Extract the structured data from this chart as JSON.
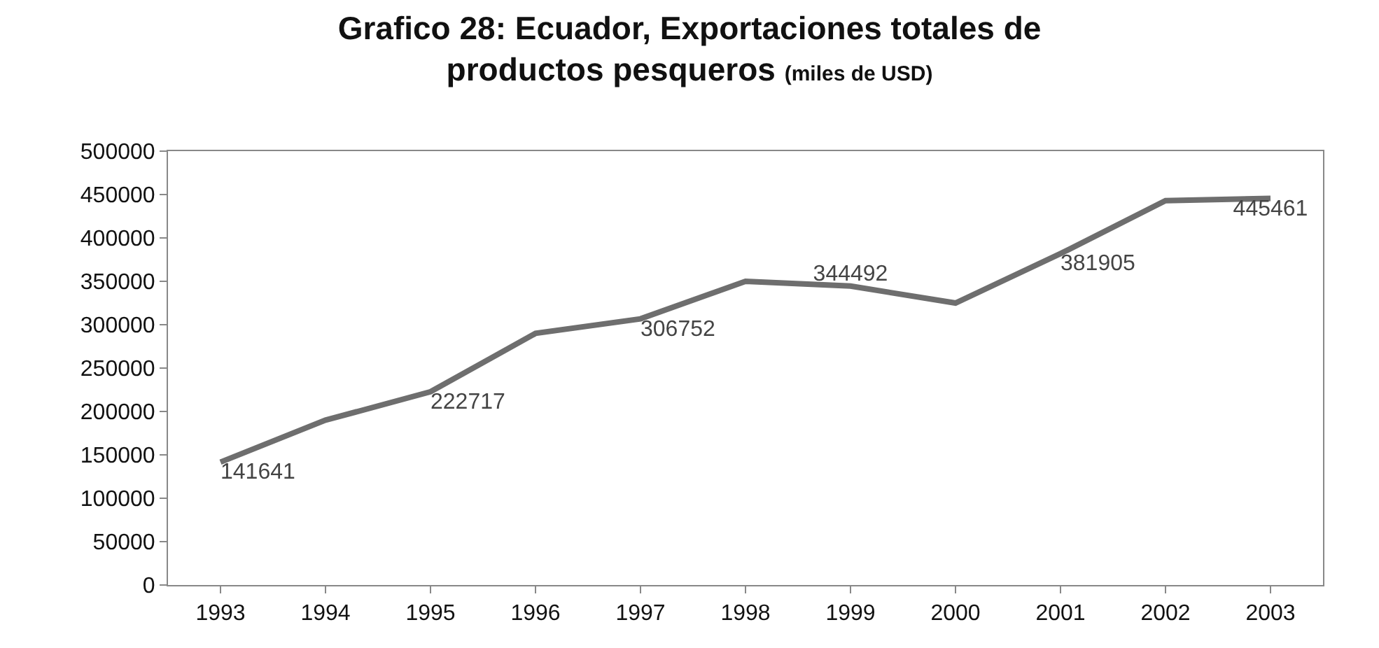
{
  "chart_data": {
    "type": "line",
    "title": "Grafico 28: Ecuador, Exportaciones totales de productos pesqueros",
    "subtitle": "(miles de USD)",
    "categories": [
      "1993",
      "1994",
      "1995",
      "1996",
      "1997",
      "1998",
      "1999",
      "2000",
      "2001",
      "2002",
      "2003"
    ],
    "series": [
      {
        "color": "#6e6e6e",
        "values": [
          141641,
          190000,
          222717,
          290000,
          306752,
          350000,
          344492,
          325000,
          381905,
          443000,
          445461
        ],
        "value_labels": [
          "141641",
          null,
          "222717",
          null,
          "306752",
          null,
          "344492",
          null,
          "381905",
          null,
          "445461"
        ]
      }
    ],
    "ylim": [
      0,
      500000
    ],
    "yticks": [
      0,
      50000,
      100000,
      150000,
      200000,
      250000,
      300000,
      350000,
      400000,
      450000,
      500000
    ],
    "grid": false,
    "marker": "none",
    "line_style": "solid"
  }
}
